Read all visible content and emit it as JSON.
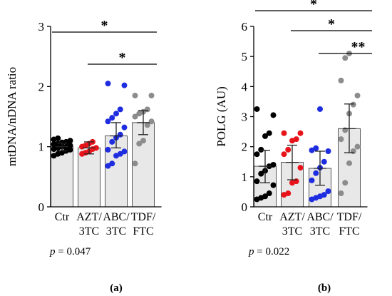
{
  "colors": {
    "bar_fill": "#e8e8e8",
    "bar_stroke": "#555555",
    "ctr": "#000000",
    "azt": "#e8141b",
    "abc": "#1f2de0",
    "tdf": "#8c8c8c"
  },
  "chart_data": [
    {
      "type": "bar",
      "panel_label": "(a)",
      "ylabel": "mtDNA/nDNA ratio",
      "ylim": [
        0,
        3
      ],
      "yticks": [
        "0",
        "1",
        "2",
        "3"
      ],
      "categories": [
        "Ctr",
        "AZT/\n3TC",
        "ABC/\n3TC",
        "TDF/\nFTC"
      ],
      "category_lines": [
        [
          "Ctr"
        ],
        [
          "AZT/",
          "3TC"
        ],
        [
          "ABC/",
          "3TC"
        ],
        [
          "TDF/",
          "FTC"
        ]
      ],
      "values": [
        1.0,
        0.98,
        1.18,
        1.4
      ],
      "error_low": [
        0.93,
        0.88,
        0.98,
        1.2
      ],
      "error_high": [
        1.06,
        1.08,
        1.4,
        1.6
      ],
      "points": [
        [
          1.14,
          1.12,
          1.1,
          1.08,
          1.07,
          1.05,
          1.04,
          1.02,
          1.0,
          1.0,
          0.98,
          0.96,
          0.95,
          0.93,
          0.9,
          0.88,
          0.85
        ],
        [
          1.08,
          1.05,
          1.02,
          1.0,
          0.98,
          0.96,
          0.92,
          0.9,
          0.88
        ],
        [
          2.05,
          2.02,
          1.62,
          1.55,
          1.48,
          1.42,
          1.32,
          1.2,
          1.15,
          1.08,
          0.95,
          0.92,
          0.88,
          0.85,
          0.72,
          0.68
        ],
        [
          1.85,
          1.85,
          1.62,
          1.58,
          1.55,
          1.5,
          1.42,
          1.36,
          1.1,
          1.05,
          0.72
        ]
      ],
      "significance": [
        {
          "from": 0,
          "to": 3,
          "label": "*"
        },
        {
          "from": 1,
          "to": 3,
          "label": "*"
        }
      ],
      "p_prefix": "p",
      "p_rest": " = 0.047"
    },
    {
      "type": "bar",
      "panel_label": "(b)",
      "ylabel": "POLG (AU)",
      "ylim": [
        0,
        6
      ],
      "yticks": [
        "0",
        "1",
        "2",
        "3",
        "4",
        "5",
        "6"
      ],
      "categories": [
        "Ctr",
        "AZT/\n3TC",
        "ABC/\n3TC",
        "TDF/\nFTC"
      ],
      "category_lines": [
        [
          "Ctr"
        ],
        [
          "AZT/",
          "3TC"
        ],
        [
          "ABC/",
          "3TC"
        ],
        [
          "TDF/",
          "FTC"
        ]
      ],
      "values": [
        1.35,
        1.48,
        1.28,
        2.6
      ],
      "error_low": [
        0.8,
        0.9,
        0.72,
        1.8
      ],
      "error_high": [
        1.88,
        2.05,
        1.85,
        3.42
      ],
      "points": [
        [
          3.25,
          3.05,
          2.45,
          2.35,
          1.9,
          1.75,
          1.4,
          1.35,
          1.2,
          1.1,
          0.85,
          0.72,
          0.45,
          0.35,
          0.3,
          0.25
        ],
        [
          2.45,
          2.45,
          2.25,
          2.2,
          1.9,
          1.75,
          1.3,
          0.85,
          0.8,
          0.45,
          0.4
        ],
        [
          3.25,
          1.95,
          1.88,
          1.85,
          1.5,
          1.3,
          1.12,
          0.88,
          0.52,
          0.4,
          0.35,
          0.3,
          0.25
        ],
        [
          5.1,
          4.95,
          4.2,
          3.7,
          3.4,
          3.1,
          2.55,
          2.25,
          2.0,
          1.85,
          1.45,
          0.8,
          0.45
        ]
      ],
      "significance": [
        {
          "from": 0,
          "to": 3,
          "label": "*"
        },
        {
          "from": 1,
          "to": 3,
          "label": "*"
        },
        {
          "from": 2,
          "to": 3,
          "label": "**"
        }
      ],
      "p_prefix": "p",
      "p_rest": " = 0.022"
    }
  ]
}
